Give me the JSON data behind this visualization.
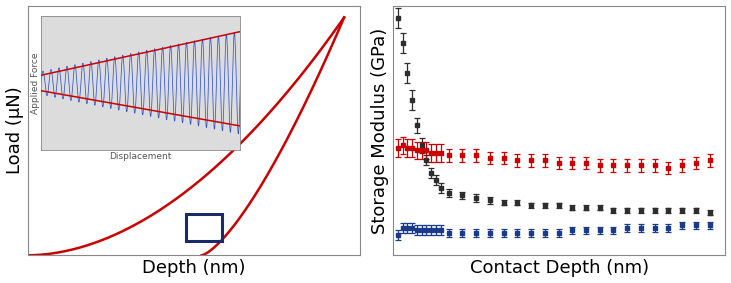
{
  "left_xlabel": "Depth (nm)",
  "left_ylabel": "Load (μN)",
  "right_xlabel": "Contact Depth (nm)",
  "right_ylabel": "Storage Modulus (GPa)",
  "inset_xlabel": "Displacement",
  "inset_ylabel": "Applied Force",
  "red_color": "#cc0000",
  "dark_gray_color": "#2d2d2d",
  "blue_color": "#1a3a8a",
  "inset_bg": "#dcdcdc",
  "box_color": "#1a2a6a",
  "axis_label_fontsize": 13,
  "xlabel_fontsize": 13
}
